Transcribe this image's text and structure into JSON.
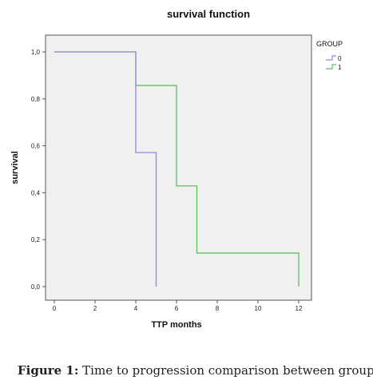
{
  "chart_data": {
    "type": "line",
    "subtype": "kaplan-meier step",
    "title": "survival function",
    "xlabel": "TTP months",
    "ylabel": "survival",
    "xlim": [
      0,
      12
    ],
    "ylim": [
      0,
      1
    ],
    "xticks": [
      0,
      2,
      4,
      6,
      8,
      10,
      12
    ],
    "yticks": [
      "0,0",
      "0,2",
      "0,4",
      "0,6",
      "0,8",
      "1,0"
    ],
    "ytick_values": [
      0,
      0.2,
      0.4,
      0.6,
      0.8,
      1.0
    ],
    "grid": false,
    "legend": {
      "title": "GROUP",
      "position": "right"
    },
    "series": [
      {
        "name": "0",
        "color": "#8c8cd6",
        "steps": [
          {
            "x": 0,
            "y": 1.0
          },
          {
            "x": 4,
            "y": 0.571
          },
          {
            "x": 5,
            "y": 0.0
          }
        ],
        "end_x": 5
      },
      {
        "name": "1",
        "color": "#5cc05c",
        "steps": [
          {
            "x": 0,
            "y": 1.0
          },
          {
            "x": 4,
            "y": 0.857
          },
          {
            "x": 6,
            "y": 0.429
          },
          {
            "x": 7,
            "y": 0.143
          },
          {
            "x": 12,
            "y": 0.0
          }
        ],
        "end_x": 12
      }
    ]
  },
  "caption": {
    "label": "Figure 1:",
    "text": "Time to progression comparison between groups"
  }
}
